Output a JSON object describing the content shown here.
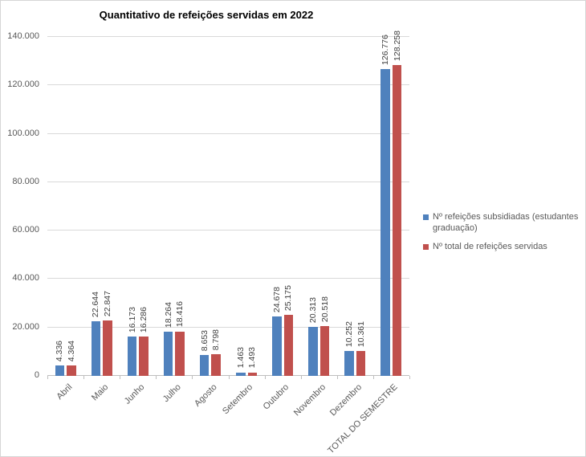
{
  "chart_data": {
    "type": "bar",
    "title": "Quantitativo de refeições servidas em 2022",
    "categories": [
      "Abril",
      "Maio",
      "Junho",
      "Julho",
      "Agosto",
      "Setembro",
      "Outubro",
      "Novembro",
      "Dezembro",
      "TOTAL DO SEMESTRE"
    ],
    "series": [
      {
        "name": "Nº refeições subsidiadas (estudantes graduação)",
        "color": "#4F81BD",
        "values": [
          4336,
          22644,
          16173,
          18264,
          8653,
          1463,
          24678,
          20313,
          10252,
          126776
        ],
        "labels": [
          "4.336",
          "22.644",
          "16.173",
          "18.264",
          "8.653",
          "1.463",
          "24.678",
          "20.313",
          "10.252",
          "126.776"
        ]
      },
      {
        "name": "Nº total de refeições servidas",
        "color": "#C0504D",
        "values": [
          4364,
          22847,
          16286,
          18416,
          8798,
          1493,
          25175,
          20518,
          10361,
          128258
        ],
        "labels": [
          "4.364",
          "22.847",
          "16.286",
          "18.416",
          "8.798",
          "1.493",
          "25.175",
          "20.518",
          "10.361",
          "128.258"
        ]
      }
    ],
    "y_axis": {
      "min": 0,
      "max": 140000,
      "step": 20000,
      "tick_labels": [
        "0",
        "20.000",
        "40.000",
        "60.000",
        "80.000",
        "100.000",
        "120.000",
        "140.000"
      ]
    },
    "legend_position": "right",
    "grid": true,
    "data_labels_rotation": "vertical",
    "x_labels_rotation": 45,
    "colors": {
      "gridline": "#D9D9D9",
      "axis_line": "#BFBFBF",
      "axis_text": "#595959",
      "data_label_text": "#404040",
      "title_text": "#000000",
      "legend_text": "#595959",
      "chart_border": "#D6D6D6",
      "background": "#FFFFFF"
    }
  }
}
